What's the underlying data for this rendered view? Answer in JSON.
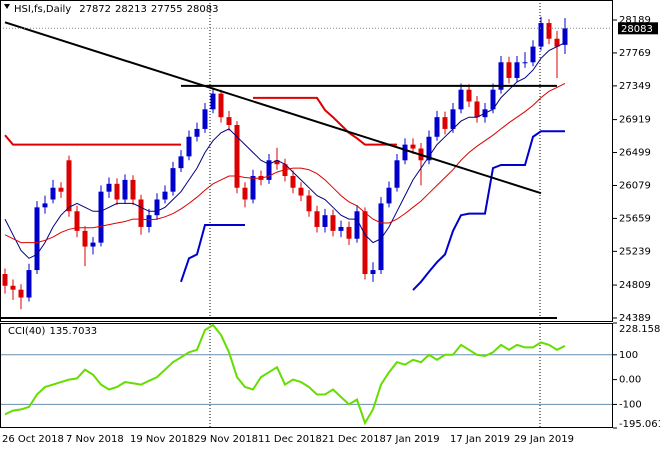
{
  "chart_data": [
    {
      "type": "candlestick",
      "title": "HSI,fs,Daily",
      "categories": [
        "26 Oct 2018",
        null,
        null,
        null,
        null,
        null,
        null,
        null,
        "7 Nov 2018",
        null,
        null,
        null,
        null,
        null,
        null,
        null,
        "19 Nov 2018",
        null,
        null,
        null,
        null,
        null,
        null,
        null,
        "29 Nov 2018",
        null,
        null,
        null,
        null,
        null,
        null,
        null,
        "11 Dec 2018",
        null,
        null,
        null,
        null,
        null,
        null,
        null,
        "21 Dec 2018",
        null,
        null,
        null,
        null,
        null,
        null,
        null,
        "7 Jan 2019",
        null,
        null,
        null,
        null,
        null,
        null,
        null,
        "17 Jan 2019",
        null,
        null,
        null,
        null,
        null,
        null,
        null,
        "29 Jan 2019",
        null,
        null,
        null,
        null,
        null,
        null
      ],
      "open": [
        24950,
        24800,
        24750,
        24650,
        25000,
        25800,
        25900,
        26050,
        26400,
        25750,
        25500,
        25300,
        25350,
        26000,
        26100,
        25900,
        26150,
        25900,
        25550,
        25700,
        25900,
        26000,
        26300,
        26450,
        26700,
        26800,
        27050,
        27250,
        26950,
        26850,
        26050,
        25900,
        26200,
        26150,
        26400,
        26350,
        26200,
        26050,
        25950,
        25750,
        25550,
        25700,
        25500,
        25550,
        25400,
        25750,
        24950,
        25000,
        25850,
        26050,
        26400,
        26600,
        26550,
        26400,
        26700,
        26950,
        26800,
        27050,
        27300,
        27150,
        26950,
        27050,
        27300,
        27650,
        27450,
        27650,
        27650,
        27850,
        28150,
        27950,
        27872
      ],
      "high": [
        25020,
        24880,
        24820,
        25080,
        25880,
        25950,
        26150,
        26120,
        26460,
        25820,
        25560,
        25420,
        26080,
        26180,
        26170,
        26220,
        26210,
        25960,
        25780,
        25980,
        26080,
        26380,
        26530,
        26780,
        26880,
        27130,
        27330,
        27300,
        27030,
        26900,
        26120,
        26280,
        26270,
        26480,
        26560,
        26420,
        26270,
        26120,
        26020,
        25820,
        25780,
        25770,
        25630,
        25620,
        25830,
        25800,
        25100,
        25930,
        26130,
        26480,
        26680,
        26680,
        26620,
        26780,
        27030,
        27020,
        27130,
        27380,
        27370,
        27220,
        27130,
        27380,
        27730,
        27720,
        27730,
        27780,
        27930,
        28230,
        28200,
        28050,
        28213
      ],
      "low": [
        24700,
        24620,
        24500,
        24600,
        24950,
        25720,
        25850,
        25920,
        25680,
        25420,
        25050,
        25200,
        25300,
        25920,
        25830,
        25850,
        25830,
        25450,
        25480,
        25640,
        25850,
        25950,
        26250,
        26400,
        26640,
        26750,
        27000,
        26880,
        26780,
        25980,
        25800,
        25850,
        26080,
        26100,
        26280,
        26130,
        25980,
        25880,
        25680,
        25480,
        25480,
        25430,
        25420,
        25320,
        25350,
        24880,
        24850,
        24950,
        25800,
        26000,
        26350,
        26480,
        26080,
        26350,
        26650,
        26730,
        26750,
        27000,
        27080,
        26880,
        26880,
        27000,
        27250,
        27380,
        27400,
        27580,
        27600,
        27800,
        27880,
        27450,
        27755
      ],
      "close": [
        24800,
        24750,
        24650,
        25000,
        25800,
        25850,
        26050,
        26000,
        25750,
        25500,
        25300,
        25350,
        26000,
        26100,
        25900,
        26150,
        25900,
        25550,
        25700,
        25900,
        26000,
        26300,
        26450,
        26700,
        26800,
        27050,
        27250,
        26950,
        26850,
        26050,
        25900,
        26200,
        26150,
        26400,
        26350,
        26200,
        26050,
        25950,
        25750,
        25550,
        25700,
        25500,
        25550,
        25400,
        25750,
        24950,
        25000,
        25850,
        26050,
        26400,
        26600,
        26550,
        26400,
        26700,
        26950,
        26800,
        27050,
        27300,
        27150,
        26950,
        27050,
        27300,
        27650,
        27450,
        27650,
        27650,
        27850,
        28150,
        27950,
        27850,
        28083
      ],
      "up_color": "#0000cc",
      "down_color": "#dd0000",
      "series": [
        {
          "color": "#000080",
          "style": "thin",
          "values": [
            25650,
            25450,
            25250,
            25150,
            25200,
            25350,
            25550,
            25700,
            25800,
            25850,
            25800,
            25750,
            25750,
            25800,
            25850,
            25850,
            25850,
            25800,
            25750,
            25750,
            25800,
            25900,
            26000,
            26150,
            26300,
            26500,
            26650,
            26750,
            26800,
            26700,
            26600,
            26500,
            26400,
            26350,
            26400,
            26350,
            26250,
            26150,
            26050,
            25950,
            25900,
            25800,
            25700,
            25650,
            25650,
            25450,
            25350,
            25400,
            25550,
            25750,
            25950,
            26150,
            26300,
            26450,
            26600,
            26700,
            26800,
            26900,
            26950,
            26950,
            27000,
            27050,
            27200,
            27300,
            27400,
            27450,
            27550,
            27700,
            27800,
            27850,
            27900
          ]
        },
        {
          "color": "#dd0000",
          "style": "thin",
          "values": [
            25450,
            25400,
            25350,
            25350,
            25350,
            25380,
            25420,
            25480,
            25520,
            25540,
            25540,
            25540,
            25560,
            25580,
            25600,
            25620,
            25650,
            25650,
            25640,
            25650,
            25680,
            25720,
            25780,
            25850,
            25930,
            26020,
            26100,
            26150,
            26200,
            26200,
            26180,
            26170,
            26170,
            26200,
            26250,
            26280,
            26300,
            26300,
            26280,
            26230,
            26150,
            26050,
            25950,
            25870,
            25820,
            25730,
            25650,
            25600,
            25600,
            25650,
            25720,
            25800,
            25880,
            25980,
            26080,
            26180,
            26280,
            26400,
            26500,
            26580,
            26650,
            26720,
            26800,
            26880,
            26950,
            27020,
            27100,
            27200,
            27280,
            27330,
            27380
          ]
        },
        {
          "color": "#dd0000",
          "style": "thick",
          "values": [
            26720,
            26600,
            26600,
            26600,
            26600,
            26600,
            26600,
            26600,
            26600,
            26600,
            26600,
            26600,
            26600,
            26600,
            26600,
            26600,
            26600,
            26600,
            26600,
            26600,
            26600,
            26600,
            26600,
            null,
            null,
            null,
            null,
            null,
            null,
            null,
            null,
            27195,
            27195,
            27195,
            27195,
            27195,
            27195,
            27195,
            27195,
            27195,
            27040,
            26950,
            26850,
            26750,
            26680,
            26600,
            26600,
            26600,
            26600,
            26600,
            null,
            null,
            null,
            null,
            null,
            null,
            null,
            null,
            null,
            null,
            null,
            null,
            null,
            null,
            null,
            null,
            null,
            null,
            null,
            null,
            null
          ]
        },
        {
          "color": "#0000cc",
          "style": "thick",
          "values": [
            null,
            null,
            null,
            null,
            null,
            null,
            null,
            null,
            null,
            null,
            null,
            null,
            null,
            null,
            null,
            null,
            null,
            null,
            null,
            null,
            null,
            null,
            24850,
            25150,
            25200,
            25575,
            25575,
            25575,
            25575,
            25575,
            25575,
            null,
            null,
            null,
            null,
            null,
            null,
            null,
            null,
            null,
            null,
            null,
            null,
            null,
            null,
            null,
            null,
            null,
            null,
            null,
            null,
            24745,
            24850,
            24980,
            25100,
            25200,
            25500,
            25700,
            25720,
            25720,
            25720,
            26300,
            26340,
            26340,
            26340,
            26340,
            26700,
            26770,
            26770,
            26770,
            26770
          ]
        }
      ],
      "trendlines": [
        {
          "color": "#000000",
          "x": [
            0,
            67
          ],
          "values": [
            28160,
            25980
          ]
        },
        {
          "color": "#000000",
          "x": [
            22,
            69
          ],
          "values": [
            27349,
            27349
          ]
        },
        {
          "color": "#000000",
          "x": [
            -1,
            69
          ],
          "values": [
            24389,
            24389
          ]
        }
      ],
      "ylim": [
        24338,
        28444
      ],
      "yticks": [
        28189,
        27769,
        27349,
        26919,
        26499,
        26079,
        25659,
        25239,
        24809,
        24389
      ]
    },
    {
      "type": "line",
      "title": "CCI(40)",
      "series": [
        {
          "color": "#66dd00",
          "style": "thick",
          "values": [
            -140,
            -125,
            -120,
            -110,
            -60,
            -30,
            -20,
            -10,
            0,
            5,
            40,
            20,
            -20,
            -40,
            -30,
            -10,
            -15,
            -20,
            -5,
            10,
            40,
            70,
            90,
            110,
            120,
            200,
            220,
            180,
            110,
            10,
            -30,
            -40,
            10,
            30,
            50,
            -20,
            0,
            -10,
            -30,
            -60,
            -60,
            -40,
            -70,
            -100,
            -80,
            -175,
            -120,
            -20,
            30,
            70,
            60,
            80,
            70,
            100,
            80,
            100,
            100,
            140,
            120,
            100,
            95,
            110,
            140,
            120,
            140,
            130,
            130,
            150,
            140,
            120,
            135.7033
          ]
        }
      ],
      "ylim": [
        -195.061,
        228.1588
      ],
      "yticks": [
        228.1588,
        100,
        {
          "value": 0,
          "label": "0.00"
        },
        -100,
        -195.061
      ]
    }
  ]
}
